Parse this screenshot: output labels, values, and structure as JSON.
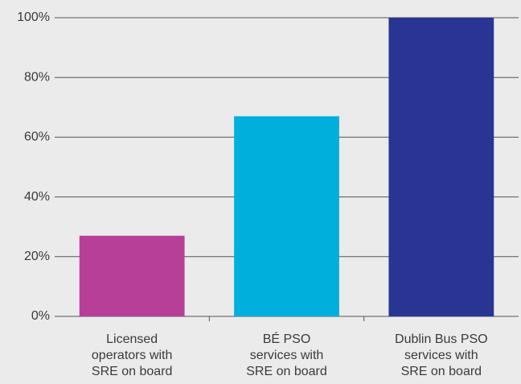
{
  "chart_data": {
    "type": "bar",
    "categories": [
      "Licensed\noperators with\nSRE on board",
      "BÉ PSO\nservices with\nSRE on board",
      "Dublin Bus PSO\nservices with\nSRE on board"
    ],
    "values": [
      27,
      67,
      100
    ],
    "colors": [
      "#b83f98",
      "#00afdb",
      "#283593"
    ],
    "ylim": [
      0,
      100
    ],
    "yticks": [
      {
        "value": 0,
        "label": "0%"
      },
      {
        "value": 20,
        "label": "20%"
      },
      {
        "value": 40,
        "label": "40%"
      },
      {
        "value": 60,
        "label": "60%"
      },
      {
        "value": 80,
        "label": "80%"
      },
      {
        "value": 100,
        "label": "100%"
      }
    ],
    "grid": true
  }
}
